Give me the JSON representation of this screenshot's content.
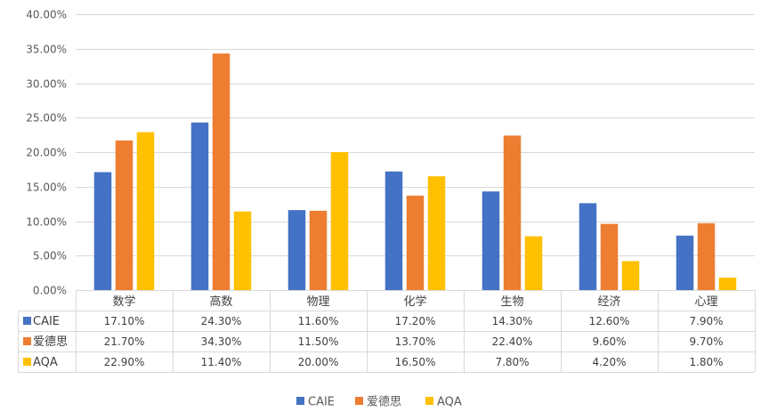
{
  "chart_data": {
    "type": "bar",
    "categories": [
      "数学",
      "高数",
      "物理",
      "化学",
      "生物",
      "经济",
      "心理"
    ],
    "series": [
      {
        "name": "CAIE",
        "color": "#4472C4",
        "values": [
          17.1,
          24.3,
          11.6,
          17.2,
          14.3,
          12.6,
          7.9
        ],
        "labels": [
          "17.10%",
          "24.30%",
          "11.60%",
          "17.20%",
          "14.30%",
          "12.60%",
          "7.90%"
        ]
      },
      {
        "name": "爱德思",
        "color": "#ED7D31",
        "values": [
          21.7,
          34.3,
          11.5,
          13.7,
          22.4,
          9.6,
          9.7
        ],
        "labels": [
          "21.70%",
          "34.30%",
          "11.50%",
          "13.70%",
          "22.40%",
          "9.60%",
          "9.70%"
        ]
      },
      {
        "name": "AQA",
        "color": "#FFC000",
        "values": [
          22.9,
          11.4,
          20.0,
          16.5,
          7.8,
          4.2,
          1.8
        ],
        "labels": [
          "22.90%",
          "11.40%",
          "20.00%",
          "16.50%",
          "7.80%",
          "4.20%",
          "1.80%"
        ]
      }
    ],
    "ylim": [
      0,
      40
    ],
    "yticks": [
      {
        "value": 0,
        "label": "0.00%"
      },
      {
        "value": 5,
        "label": "5.00%"
      },
      {
        "value": 10,
        "label": "10.00%"
      },
      {
        "value": 15,
        "label": "15.00%"
      },
      {
        "value": 20,
        "label": "20.00%"
      },
      {
        "value": 25,
        "label": "25.00%"
      },
      {
        "value": 30,
        "label": "30.00%"
      },
      {
        "value": 35,
        "label": "35.00%"
      },
      {
        "value": 40,
        "label": "40.00%"
      }
    ],
    "grid": true,
    "data_table": true,
    "legend_position": "bottom"
  }
}
